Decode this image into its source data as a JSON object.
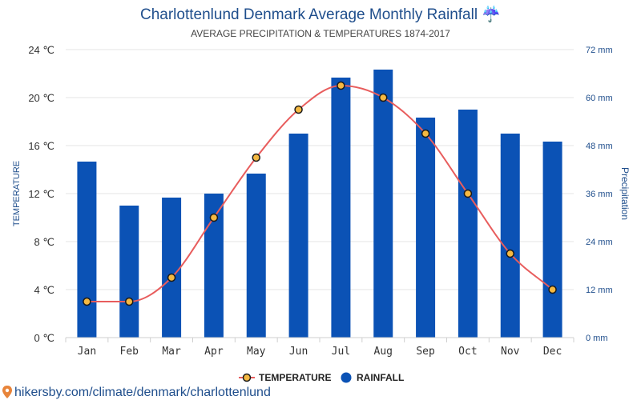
{
  "colors": {
    "bar": "#0b52b5",
    "temperature_line": "#e85d5d",
    "marker_fill": "#f5b942",
    "marker_stroke": "#1a1a1a",
    "grid": "#e6e6e6",
    "title": "#1f4e8c",
    "pin": "#e8843a"
  },
  "header": {
    "title": "Charlottenlund Denmark Average Monthly Rainfall ☔",
    "subtitle": "AVERAGE PRECIPITATION & TEMPERATURES 1874-2017"
  },
  "legend": {
    "temperature": "TEMPERATURE",
    "rainfall": "RAINFALL"
  },
  "source": {
    "text": "hikersby.com/climate/denmark/charlottenlund"
  },
  "chart_data": {
    "type": "bar",
    "categories": [
      "Jan",
      "Feb",
      "Mar",
      "Apr",
      "May",
      "Jun",
      "Jul",
      "Aug",
      "Sep",
      "Oct",
      "Nov",
      "Dec"
    ],
    "series": [
      {
        "name": "RAINFALL",
        "type": "bar",
        "axis": "right",
        "unit": "mm",
        "values": [
          44,
          33,
          35,
          36,
          41,
          51,
          65,
          67,
          55,
          57,
          51,
          49
        ]
      },
      {
        "name": "TEMPERATURE",
        "type": "line",
        "axis": "left",
        "unit": "℃",
        "values": [
          3,
          3,
          5,
          10,
          15,
          19,
          21,
          20,
          17,
          12,
          7,
          4
        ]
      }
    ],
    "ylabel_left": "TEMPERATURE",
    "ylabel_right": "Precipitation",
    "ylim_left": [
      0,
      24
    ],
    "ylim_right": [
      0,
      72
    ],
    "yticks_left": [
      "0 ℃",
      "4 ℃",
      "8 ℃",
      "12 ℃",
      "16 ℃",
      "20 ℃",
      "24 ℃"
    ],
    "yticks_right": [
      "0 mm",
      "12 mm",
      "24 mm",
      "36 mm",
      "48 mm",
      "60 mm",
      "72 mm"
    ],
    "grid": true,
    "legend_position": "bottom-center"
  }
}
